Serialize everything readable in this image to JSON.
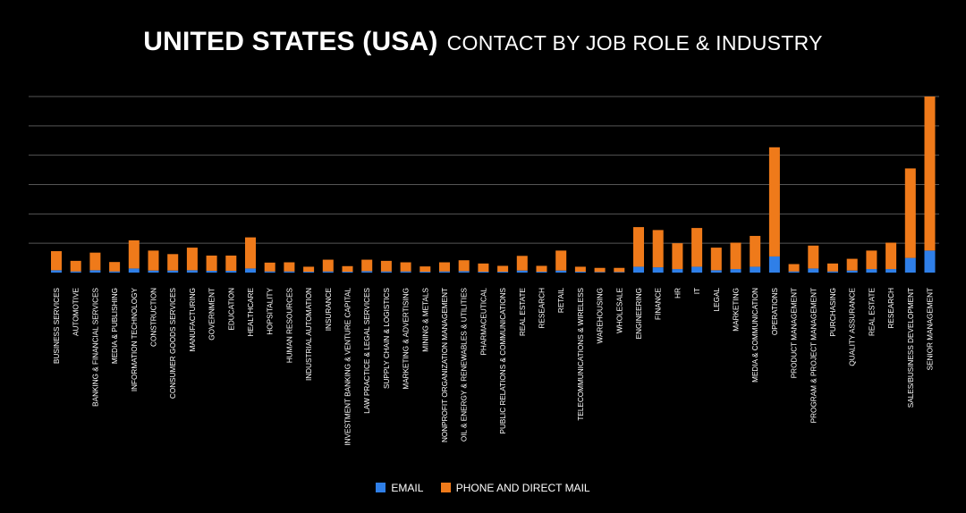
{
  "title": {
    "bold": "UNITED STATES (USA)",
    "light": "CONTACT BY JOB ROLE & INDUSTRY"
  },
  "colors": {
    "email": "#2f7fe8",
    "phone": "#ef7a1a",
    "grid": "#555555",
    "background": "#000000"
  },
  "chart_data": {
    "type": "bar",
    "stacked": true,
    "title": "UNITED STATES (USA) CONTACT BY JOB ROLE & INDUSTRY",
    "xlabel": "",
    "ylabel": "",
    "ylim": [
      0,
      6
    ],
    "grid": true,
    "legend": "bottom",
    "categories": [
      "BUSINESS SERVICES",
      "AUTOMOTIVE",
      "BANKING & FINANCIAL SERVICES",
      "MEDIA & PUBLISHING",
      "INFORMATION TECHNOLOGY",
      "CONSTRUCTION",
      "CONSUMER GOODS SERVICES",
      "MANUFACTURING",
      "GOVERNMENT",
      "EDUCATION",
      "HEALTHCARE",
      "HOPSITALITY",
      "HUMAN RESOURCES",
      "INDUSTRIAL AUTOMATION",
      "INSURANCE",
      "INVESTMENT BANKING & VENTURE CAPITAL",
      "LAW PRACTICE & LEGAL SERVICES",
      "SUPPLY CHAIN & LOGISTICS",
      "MARKETING & ADVERTISING",
      "MINING & METALS",
      "NONPROFIT ORGANIZATION MANAGEMENT",
      "OIL & ENERGY & RENEWABLES & UTILITIES",
      "PHARMACEUTICAL",
      "PUBLIC RELATIONS & COMMUNICATIONS",
      "REAL ESTATE",
      "RESEARCH",
      "RETAIL",
      "TELECOMMUNICATIONS & WIRELESS",
      "WAREHOUSING",
      "WHOLESALE",
      "ENGINEERING",
      "FINANCE",
      "HR",
      "IT",
      "LEGAL",
      "MARKETING",
      "MEDIA & COMMUNICATION",
      "OPERATIONS",
      "PRODUCT MANAGEMENT",
      "PROGRAM & PROJECT MANAGEMENT",
      "PURCHASING",
      "QUALITY ASSURANCE",
      "REAL ESTATE",
      "RESEARCH",
      "SALES/BUSINESS DEVELOPMENT",
      "SENIOR MANAGEMENT"
    ],
    "series": [
      {
        "name": "EMAIL",
        "values": [
          0.08,
          0.04,
          0.08,
          0.04,
          0.14,
          0.07,
          0.07,
          0.08,
          0.06,
          0.06,
          0.14,
          0.04,
          0.04,
          0.03,
          0.04,
          0.03,
          0.05,
          0.04,
          0.04,
          0.03,
          0.04,
          0.05,
          0.03,
          0.03,
          0.07,
          0.03,
          0.07,
          0.03,
          0.02,
          0.02,
          0.2,
          0.18,
          0.12,
          0.2,
          0.08,
          0.12,
          0.2,
          0.55,
          0.04,
          0.14,
          0.04,
          0.07,
          0.12,
          0.12,
          0.5,
          0.75
        ]
      },
      {
        "name": "PHONE AND DIRECT MAIL",
        "values": [
          0.65,
          0.36,
          0.6,
          0.32,
          0.96,
          0.68,
          0.56,
          0.77,
          0.52,
          0.52,
          1.06,
          0.3,
          0.31,
          0.17,
          0.4,
          0.19,
          0.39,
          0.36,
          0.31,
          0.18,
          0.31,
          0.37,
          0.28,
          0.2,
          0.5,
          0.2,
          0.68,
          0.17,
          0.14,
          0.14,
          1.35,
          1.27,
          0.88,
          1.32,
          0.77,
          0.9,
          1.05,
          3.72,
          0.25,
          0.78,
          0.27,
          0.4,
          0.63,
          0.9,
          3.05,
          5.25
        ]
      }
    ]
  }
}
